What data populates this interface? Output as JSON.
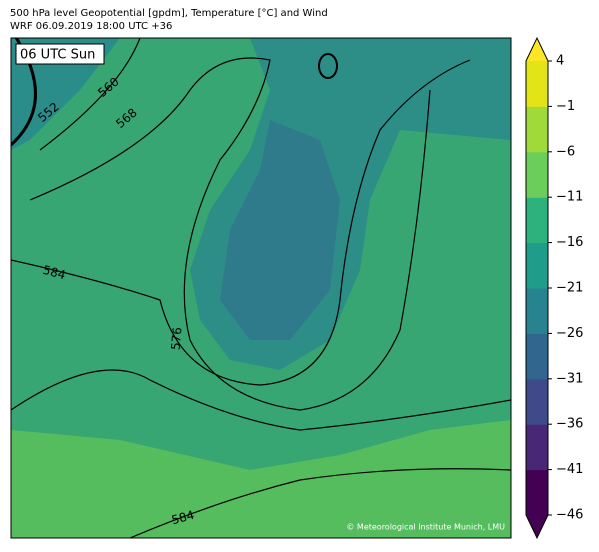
{
  "header": {
    "title": "500 hPa level Geopotential [gpdm], Temperature [°C] and Wind",
    "subtitle": "WRF 06.09.2019 18:00 UTC +36"
  },
  "map": {
    "time_label": "06 UTC Sun",
    "contour_labels": [
      "552",
      "560",
      "568",
      "584",
      "576",
      "584"
    ],
    "credit": "© Meteorological Institute Munich, LMU"
  },
  "colorbar": {
    "range": [
      -46,
      4
    ],
    "ticks": [
      {
        "value": 4,
        "label": "4"
      },
      {
        "value": -1,
        "label": "−1"
      },
      {
        "value": -6,
        "label": "−6"
      },
      {
        "value": -11,
        "label": "−11"
      },
      {
        "value": -16,
        "label": "−16"
      },
      {
        "value": -21,
        "label": "−21"
      },
      {
        "value": -26,
        "label": "−26"
      },
      {
        "value": -31,
        "label": "−31"
      },
      {
        "value": -36,
        "label": "−36"
      },
      {
        "value": -41,
        "label": "−41"
      },
      {
        "value": -46,
        "label": "−46"
      }
    ],
    "colors": [
      "#440154",
      "#482777",
      "#3f4a8a",
      "#31678e",
      "#26838f",
      "#1f9d8a",
      "#2db27d",
      "#6cce5a",
      "#9fda3a",
      "#e2e418"
    ],
    "over_color": "#fde725",
    "under_color": "#440154"
  }
}
